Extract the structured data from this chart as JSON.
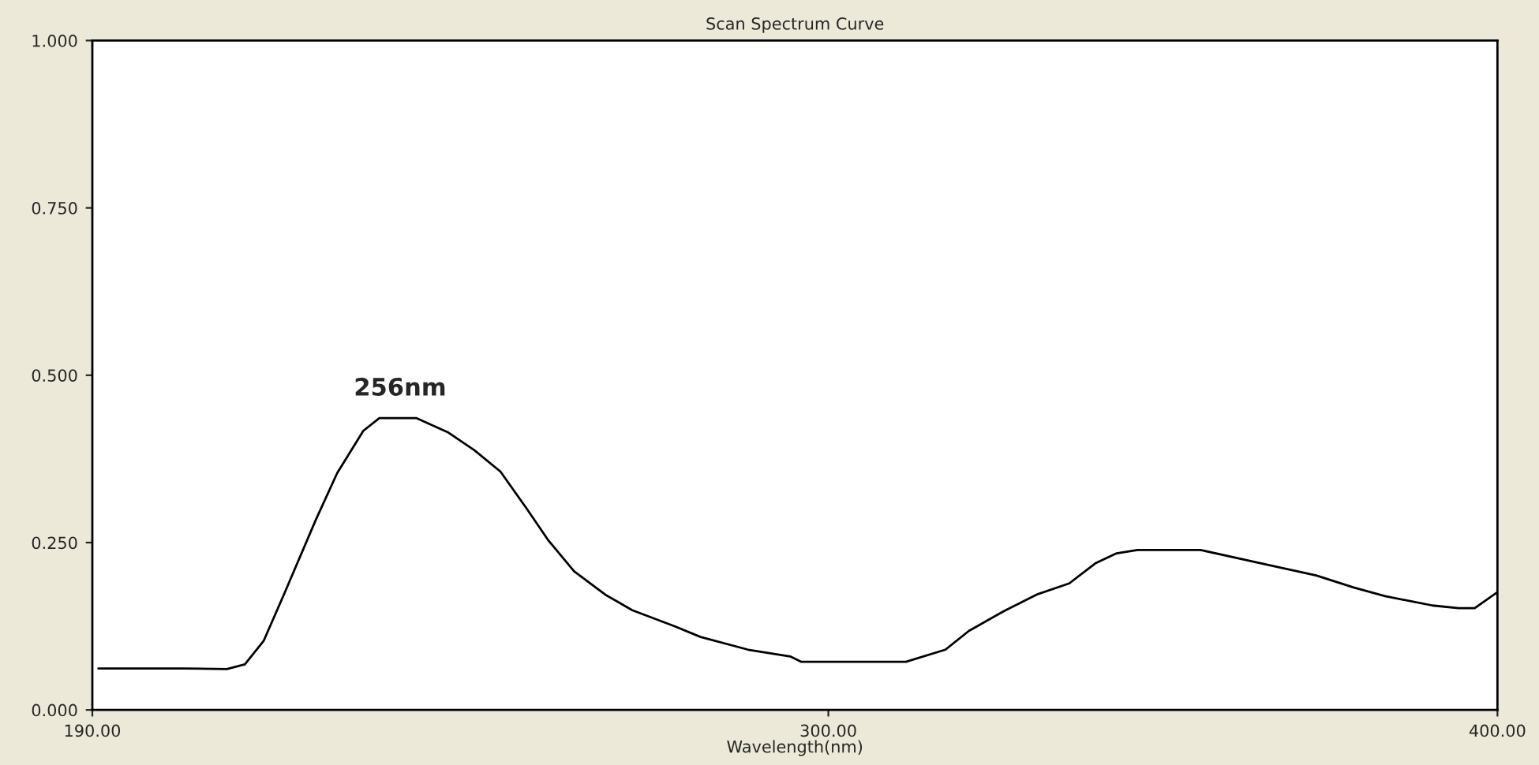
{
  "chart_data": {
    "type": "line",
    "title": "Scan Spectrum Curve",
    "xlabel": "Wavelength(nm)",
    "xlim": [
      190,
      400
    ],
    "xticks": [
      {
        "value": 190,
        "label": "190.00"
      },
      {
        "value": 300,
        "label": "300.00"
      },
      {
        "value": 400,
        "label": "400.00"
      }
    ],
    "ylim": [
      0,
      1
    ],
    "yticks": [
      {
        "value": 0,
        "label": "0.000"
      },
      {
        "value": 0.25,
        "label": "0.250"
      },
      {
        "value": 0.5,
        "label": "0.500"
      },
      {
        "value": 0.75,
        "label": "0.750"
      },
      {
        "value": 1,
        "label": "1.000"
      }
    ],
    "grid": false,
    "annotations": [
      {
        "text": "256nm",
        "x": 236,
        "y": 0.436
      }
    ],
    "series": [
      {
        "color": "#000000",
        "x": [
          190.9,
          203.8,
          210.1,
          212.8,
          215.6,
          218.7,
          223.4,
          226.6,
          230.5,
          232.9,
          238.4,
          243.1,
          247.1,
          251.0,
          254.9,
          258.1,
          262.0,
          266.7,
          270.7,
          277.0,
          280.9,
          288.0,
          294.3,
          295.9,
          311.6,
          317.5,
          321.0,
          326.5,
          331.3,
          336.0,
          339.9,
          343.1,
          346.2,
          355.6,
          365.1,
          372.9,
          378.5,
          383.2,
          390.3,
          394.2,
          396.6,
          400.0
        ],
        "values": [
          0.062,
          0.062,
          0.061,
          0.068,
          0.103,
          0.174,
          0.284,
          0.354,
          0.417,
          0.436,
          0.436,
          0.415,
          0.388,
          0.356,
          0.301,
          0.254,
          0.207,
          0.172,
          0.149,
          0.125,
          0.109,
          0.09,
          0.08,
          0.072,
          0.072,
          0.09,
          0.118,
          0.149,
          0.173,
          0.189,
          0.219,
          0.234,
          0.239,
          0.239,
          0.218,
          0.201,
          0.183,
          0.17,
          0.156,
          0.152,
          0.152,
          0.176
        ]
      }
    ]
  }
}
